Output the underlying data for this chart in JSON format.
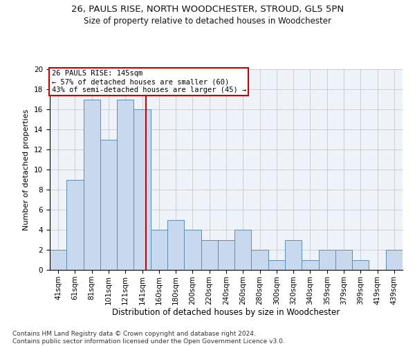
{
  "title1": "26, PAULS RISE, NORTH WOODCHESTER, STROUD, GL5 5PN",
  "title2": "Size of property relative to detached houses in Woodchester",
  "xlabel": "Distribution of detached houses by size in Woodchester",
  "ylabel": "Number of detached properties",
  "footnote": "Contains HM Land Registry data © Crown copyright and database right 2024.\nContains public sector information licensed under the Open Government Licence v3.0.",
  "bin_labels": [
    "41sqm",
    "61sqm",
    "81sqm",
    "101sqm",
    "121sqm",
    "141sqm",
    "160sqm",
    "180sqm",
    "200sqm",
    "220sqm",
    "240sqm",
    "260sqm",
    "280sqm",
    "300sqm",
    "320sqm",
    "340sqm",
    "359sqm",
    "379sqm",
    "399sqm",
    "419sqm",
    "439sqm"
  ],
  "bar_heights": [
    2,
    9,
    17,
    13,
    17,
    16,
    4,
    5,
    4,
    3,
    3,
    4,
    2,
    1,
    3,
    1,
    2,
    2,
    1,
    0,
    2
  ],
  "bar_color": "#c8d9ed",
  "bar_edge_color": "#5b8db8",
  "vline_index": 5.21,
  "property_line_label": "26 PAULS RISE: 145sqm",
  "annotation_line1": "← 57% of detached houses are smaller (60)",
  "annotation_line2": "43% of semi-detached houses are larger (45) →",
  "annotation_box_color": "#ffffff",
  "annotation_box_edge_color": "#cc0000",
  "vline_color": "#cc0000",
  "ylim": [
    0,
    20
  ],
  "yticks": [
    0,
    2,
    4,
    6,
    8,
    10,
    12,
    14,
    16,
    18,
    20
  ],
  "grid_color": "#c8c8c8",
  "background_color": "#eef2f9",
  "title1_fontsize": 9.5,
  "title2_fontsize": 8.5,
  "xlabel_fontsize": 8.5,
  "ylabel_fontsize": 8.0,
  "tick_fontsize": 7.5,
  "footnote_fontsize": 6.5,
  "annotation_fontsize": 7.5
}
